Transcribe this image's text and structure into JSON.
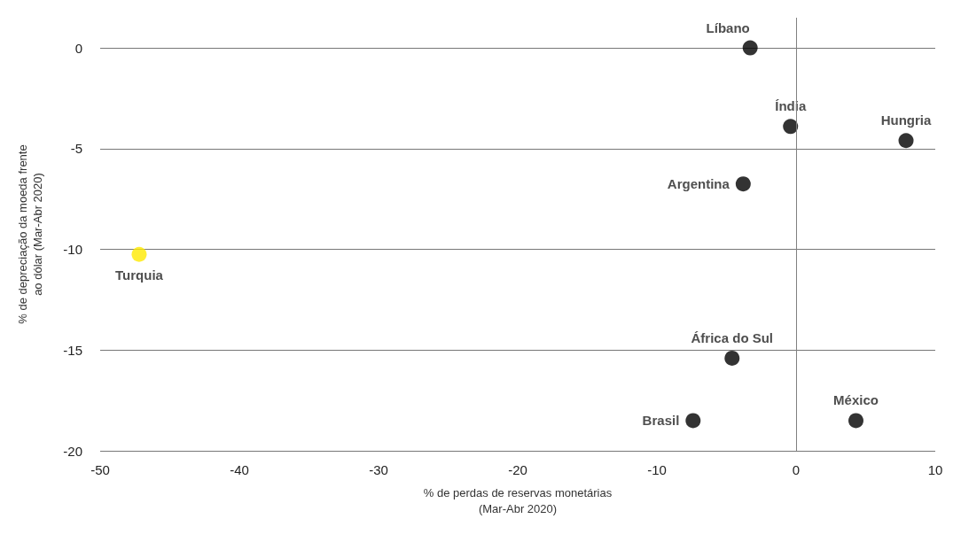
{
  "chart_data": {
    "type": "scatter",
    "xlabel": "% de perdas de reservas monetárias\n(Mar-Abr 2020)",
    "ylabel": "% de depreciação da moeda frente\nao dólar (Mar-Abr 2020)",
    "series": [
      {
        "name": "Líbano",
        "color": "#000000",
        "x": [
          -3.3
        ],
        "values": [
          0
        ]
      },
      {
        "name": "Índia",
        "color": "#000000",
        "x": [
          -0.4
        ],
        "values": [
          -3.9
        ]
      },
      {
        "name": "Hungria",
        "color": "#000000",
        "x": [
          7.9
        ],
        "values": [
          -4.6
        ]
      },
      {
        "name": "Argentina",
        "color": "#000000",
        "x": [
          -3.8
        ],
        "values": [
          -6.75
        ]
      },
      {
        "name": "Turquia",
        "color": "#ffea00",
        "x": [
          -47.2
        ],
        "values": [
          -10.25
        ]
      },
      {
        "name": "África do Sul",
        "color": "#000000",
        "x": [
          -4.6
        ],
        "values": [
          -15.4
        ]
      },
      {
        "name": "Brasil",
        "color": "#000000",
        "x": [
          -7.4
        ],
        "values": [
          -18.5
        ]
      },
      {
        "name": "México",
        "color": "#000000",
        "x": [
          4.3
        ],
        "values": [
          -18.5
        ]
      }
    ],
    "xlim": [
      -50,
      10
    ],
    "xticks": [
      -50,
      -40,
      -30,
      -20,
      -10,
      0,
      10
    ],
    "ylim": [
      -20,
      1.5
    ],
    "yticks": [
      -20,
      -15,
      -10,
      -5,
      0
    ],
    "ref_lines": [
      {
        "axis": "x",
        "value": 0,
        "color": "#808080"
      }
    ],
    "grid": "y",
    "legend": false,
    "marker": "circle"
  }
}
